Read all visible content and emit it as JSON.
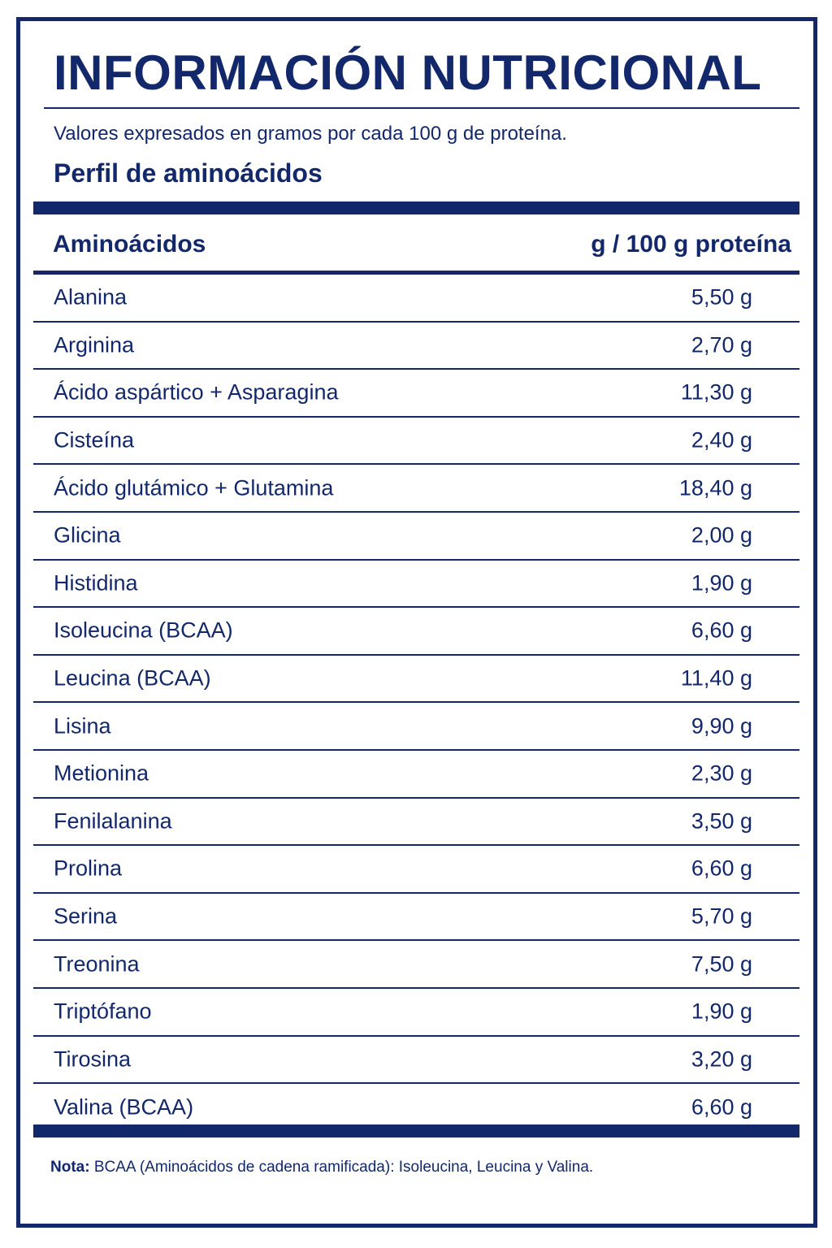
{
  "title": "INFORMACIÓN NUTRICIONAL",
  "subtitle": "Valores expresados en gramos por cada 100 g de proteína.",
  "section_title": "Perfil de aminoácidos",
  "table": {
    "header": {
      "name": "Aminoácidos",
      "value": "g / 100 g proteína"
    },
    "rows": [
      {
        "name": "Alanina",
        "value": "5,50 g"
      },
      {
        "name": "Arginina",
        "value": "2,70 g"
      },
      {
        "name": "Ácido aspártico + Asparagina",
        "value": "11,30 g"
      },
      {
        "name": "Cisteína",
        "value": "2,40 g"
      },
      {
        "name": "Ácido glutámico + Glutamina",
        "value": "18,40 g"
      },
      {
        "name": "Glicina",
        "value": "2,00 g"
      },
      {
        "name": "Histidina",
        "value": "1,90 g"
      },
      {
        "name": "Isoleucina (BCAA)",
        "value": "6,60 g"
      },
      {
        "name": "Leucina (BCAA)",
        "value": "11,40 g"
      },
      {
        "name": "Lisina",
        "value": "9,90 g"
      },
      {
        "name": "Metionina",
        "value": "2,30 g"
      },
      {
        "name": "Fenilalanina",
        "value": "3,50 g"
      },
      {
        "name": "Prolina",
        "value": "6,60 g"
      },
      {
        "name": "Serina",
        "value": "5,70 g"
      },
      {
        "name": "Treonina",
        "value": "7,50 g"
      },
      {
        "name": "Triptófano",
        "value": "1,90 g"
      },
      {
        "name": "Tirosina",
        "value": "3,20 g"
      },
      {
        "name": "Valina (BCAA)",
        "value": "6,60 g"
      }
    ]
  },
  "note": {
    "label": "Nota:",
    "text": "BCAA (Aminoácidos de cadena ramificada): Isoleucina, Leucina y Valina."
  },
  "colors": {
    "primary": "#13286b",
    "background": "#ffffff"
  }
}
